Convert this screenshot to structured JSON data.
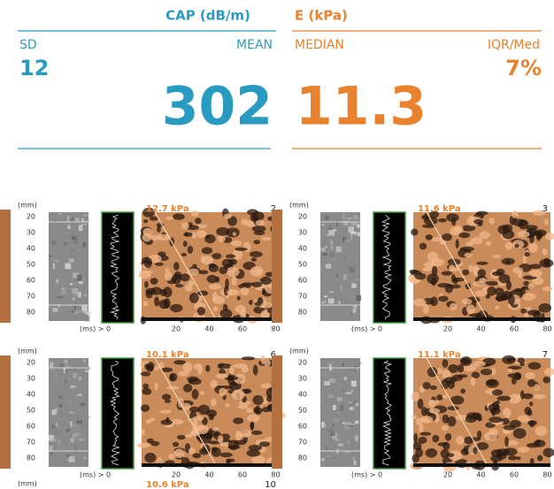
{
  "header": {
    "cap": {
      "title": "CAP (dB/m)",
      "sd_label": "SD",
      "sd": "12",
      "mean_label": "MEAN",
      "mean": "302"
    },
    "e": {
      "title": "E (kPa)",
      "median_label": "MEDIAN",
      "median": "11.3",
      "iqr_label": "IQR/Med",
      "iqr": "7%"
    }
  },
  "depth_axis": {
    "unit": "(mm)",
    "ticks": [
      "20",
      "30",
      "40",
      "50",
      "60",
      "70",
      "80"
    ]
  },
  "time_axis": {
    "unit": "(ms) > 0",
    "ticks": [
      "20",
      "40",
      "60",
      "80"
    ]
  },
  "panels": [
    {
      "value": "12.7 kPa",
      "index": "2"
    },
    {
      "value": "11.6 kPa",
      "index": "3"
    },
    {
      "value": "10.1 kPa",
      "index": "6"
    },
    {
      "value": "11.1 kPa",
      "index": "7"
    },
    {
      "value": "10.6 kPa",
      "index": "10"
    }
  ]
}
